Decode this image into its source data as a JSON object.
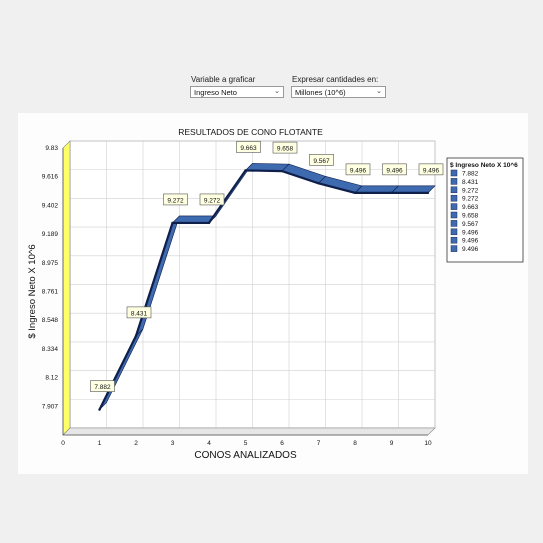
{
  "controls": {
    "variable_label": "Variable a graficar",
    "variable_value": "Ingreso Neto",
    "units_label": "Expresar cantidades en:",
    "units_value": "Millones (10^6)"
  },
  "icons": {
    "dropdown": "chevron-down-icon"
  },
  "colors": {
    "line": "#0f1f4a",
    "ribbon_top": "#3e6ab0",
    "legend_marker": "#3e6ab0",
    "side_wall": "#ffff66"
  },
  "chart_data": {
    "type": "line",
    "title": "RESULTADOS DE CONO FLOTANTE",
    "xlabel": "CONOS ANALIZADOS",
    "ylabel": "$ Ingreso Neto X 10^6",
    "x": [
      1,
      2,
      3,
      4,
      5,
      6,
      7,
      8,
      9,
      10
    ],
    "series": [
      {
        "name": "$ Ingreso Neto X 10^6",
        "values": [
          7.882,
          8.431,
          9.272,
          9.272,
          9.663,
          9.658,
          9.567,
          9.496,
          9.496,
          9.496
        ]
      }
    ],
    "data_labels": [
      "7.882",
      "8.431",
      "9.272",
      "9.272",
      "9.663",
      "9.658",
      "9.567",
      "9.496",
      "9.496",
      "9.496"
    ],
    "x_ticks": [
      "0",
      "1",
      "2",
      "3",
      "4",
      "5",
      "6",
      "7",
      "8",
      "9",
      "10"
    ],
    "y_ticks": [
      "7.907",
      "8.12",
      "8.334",
      "8.548",
      "8.761",
      "8.975",
      "9.189",
      "9.402",
      "9.616",
      "9.83"
    ],
    "xlim": [
      0,
      10
    ],
    "ylim": [
      7.693,
      9.83
    ],
    "grid": true,
    "legend": {
      "placement": "right",
      "title": "$ Ingreso Neto X 10^6",
      "entries": [
        "7.882",
        "8.431",
        "9.272",
        "9.272",
        "9.663",
        "9.658",
        "9.567",
        "9.496",
        "9.496",
        "9.496"
      ]
    }
  }
}
